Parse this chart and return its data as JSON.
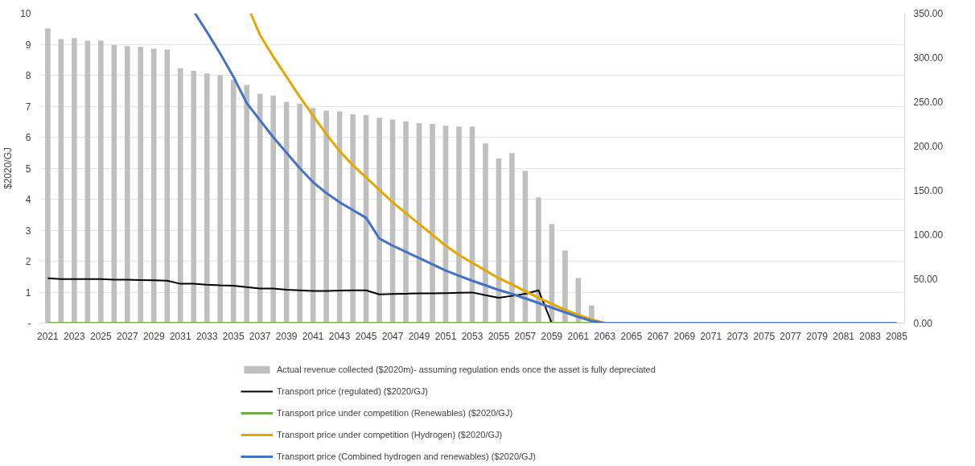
{
  "chart_data": {
    "type": "bar",
    "ylabel": "$2020/GJ",
    "xlim": [
      2020.4,
      2085.6
    ],
    "xticks": [
      2021,
      2023,
      2025,
      2027,
      2029,
      2031,
      2033,
      2035,
      2037,
      2039,
      2041,
      2043,
      2045,
      2047,
      2049,
      2051,
      2053,
      2055,
      2057,
      2059,
      2061,
      2063,
      2065,
      2067,
      2069,
      2071,
      2073,
      2075,
      2077,
      2079,
      2081,
      2083,
      2085
    ],
    "ylim": [
      0,
      10
    ],
    "yticks": [
      {
        "value": 0,
        "label": "-"
      },
      1,
      2,
      3,
      4,
      5,
      6,
      7,
      8,
      9,
      10
    ],
    "y2lim": [
      0,
      350
    ],
    "y2ticks": [
      {
        "value": 0,
        "label": "0.00"
      },
      {
        "value": 50,
        "label": "50.00"
      },
      {
        "value": 100,
        "label": "100.00"
      },
      {
        "value": 150,
        "label": "150.00"
      },
      {
        "value": 200,
        "label": "200.00"
      },
      {
        "value": 250,
        "label": "250.00"
      },
      {
        "value": 300,
        "label": "300.00"
      },
      {
        "value": 350,
        "label": "350.00"
      }
    ],
    "grid": "y",
    "legend": "bottom",
    "marker": "none",
    "line_style": "solid",
    "series": [
      {
        "name": "Actual revenue collected ($2020m)- assuming regulation ends once the asset is fully depreciated",
        "axis": "y2",
        "color": "#bfbfbf",
        "x": [
          2021,
          2022,
          2023,
          2024,
          2025,
          2026,
          2027,
          2028,
          2029,
          2030,
          2031,
          2032,
          2033,
          2034,
          2035,
          2036,
          2037,
          2038,
          2039,
          2040,
          2041,
          2042,
          2043,
          2044,
          2045,
          2046,
          2047,
          2048,
          2049,
          2050,
          2051,
          2052,
          2053,
          2054,
          2055,
          2056,
          2057,
          2058,
          2059,
          2060,
          2061,
          2062
        ],
        "values": [
          333,
          321,
          322,
          319,
          319,
          314,
          313,
          312,
          310,
          309,
          288,
          285,
          282,
          280,
          275,
          269,
          259,
          257,
          250,
          248,
          243,
          240,
          239,
          236,
          235,
          232,
          230,
          228,
          226,
          225,
          223,
          222,
          222,
          203,
          186,
          192,
          172,
          142,
          112,
          82,
          51,
          20
        ]
      },
      {
        "name": "Transport price (regulated) ($2020/GJ)",
        "type": "line",
        "color": "#000000",
        "x": [
          2021,
          2022,
          2023,
          2024,
          2025,
          2026,
          2027,
          2028,
          2029,
          2030,
          2031,
          2032,
          2033,
          2034,
          2035,
          2036,
          2037,
          2038,
          2039,
          2040,
          2041,
          2042,
          2043,
          2044,
          2045,
          2046,
          2047,
          2048,
          2049,
          2050,
          2051,
          2052,
          2053,
          2054,
          2055,
          2056,
          2057,
          2058,
          2059
        ],
        "values": [
          1.45,
          1.42,
          1.42,
          1.42,
          1.42,
          1.4,
          1.4,
          1.39,
          1.38,
          1.37,
          1.27,
          1.27,
          1.24,
          1.22,
          1.21,
          1.16,
          1.12,
          1.12,
          1.08,
          1.06,
          1.04,
          1.04,
          1.05,
          1.06,
          1.06,
          0.93,
          0.94,
          0.95,
          0.96,
          0.96,
          0.97,
          0.98,
          0.99,
          0.9,
          0.82,
          0.88,
          0.95,
          1.06,
          0
        ]
      },
      {
        "name": "Transport price under competition (Renewables) ($2020/GJ)",
        "type": "line",
        "color": "#70ad47",
        "x": [
          2021,
          2085
        ],
        "values": [
          0,
          0
        ]
      },
      {
        "name": "Transport price under competition (Hydrogen) ($2020/GJ)",
        "type": "line",
        "color": "#e5a800",
        "x": [
          2036.3,
          2037,
          2038,
          2039,
          2040,
          2041,
          2042,
          2043,
          2044,
          2045,
          2046,
          2047,
          2048,
          2049,
          2050,
          2051,
          2052,
          2053,
          2054,
          2055,
          2056,
          2057,
          2058,
          2059,
          2060,
          2061,
          2062,
          2063
        ],
        "values": [
          10,
          9.3,
          8.6,
          7.95,
          7.3,
          6.7,
          6.1,
          5.55,
          5.1,
          4.7,
          4.3,
          3.9,
          3.55,
          3.2,
          2.85,
          2.5,
          2.2,
          1.95,
          1.7,
          1.45,
          1.25,
          1.03,
          0.82,
          0.62,
          0.43,
          0.27,
          0.12,
          0
        ]
      },
      {
        "name": "Transport price (Combined hydrogen and renewables) ($2020/GJ)",
        "type": "line",
        "color": "#4472c4",
        "x": [
          2032.1,
          2033,
          2034,
          2035,
          2036,
          2037,
          2038,
          2039,
          2040,
          2041,
          2042,
          2043,
          2044,
          2045,
          2046,
          2047,
          2048,
          2049,
          2050,
          2051,
          2052,
          2053,
          2054,
          2055,
          2056,
          2057,
          2058,
          2059,
          2060,
          2061,
          2062,
          2063,
          2085
        ],
        "values": [
          10,
          9.4,
          8.7,
          7.95,
          7.1,
          6.55,
          6.0,
          5.5,
          5.0,
          4.55,
          4.2,
          3.9,
          3.65,
          3.4,
          2.73,
          2.5,
          2.3,
          2.1,
          1.9,
          1.7,
          1.53,
          1.37,
          1.22,
          1.07,
          0.94,
          0.8,
          0.65,
          0.5,
          0.35,
          0.2,
          0.07,
          0,
          0
        ]
      }
    ]
  }
}
